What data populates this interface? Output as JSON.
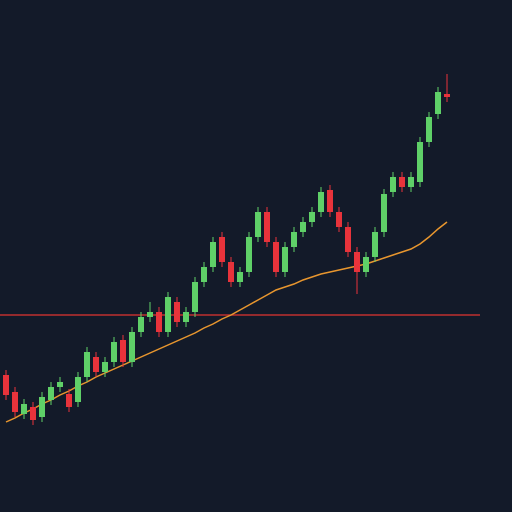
{
  "chart_data": {
    "type": "candlestick",
    "background": "#131a29",
    "up_color": "#5fd068",
    "down_color": "#e8333b",
    "ylim": [
      0,
      512
    ],
    "categories": [
      null,
      null,
      null,
      null,
      null,
      null,
      null,
      null,
      null,
      null,
      null,
      null,
      null,
      null,
      null,
      null,
      null,
      null,
      null,
      null,
      null,
      null,
      null,
      null,
      null,
      null,
      null,
      null,
      null,
      null,
      null,
      null,
      null,
      null,
      null,
      null,
      null,
      null,
      null,
      null,
      null,
      null,
      null,
      null,
      null,
      null,
      null,
      null,
      null,
      null
    ],
    "open": [
      137,
      120,
      98,
      105,
      95,
      112,
      125,
      118,
      110,
      135,
      155,
      140,
      150,
      172,
      150,
      180,
      195,
      200,
      180,
      210,
      190,
      200,
      230,
      245,
      275,
      250,
      230,
      240,
      275,
      300,
      270,
      240,
      265,
      280,
      290,
      300,
      322,
      300,
      285,
      260,
      240,
      255,
      280,
      320,
      335,
      325,
      330,
      370,
      398,
      418
    ],
    "high": [
      142,
      125,
      113,
      110,
      120,
      130,
      135,
      123,
      140,
      165,
      160,
      155,
      175,
      177,
      185,
      200,
      210,
      205,
      220,
      215,
      205,
      235,
      250,
      275,
      280,
      255,
      245,
      280,
      305,
      305,
      275,
      270,
      285,
      295,
      305,
      325,
      327,
      305,
      290,
      265,
      260,
      285,
      323,
      340,
      340,
      340,
      375,
      400,
      425,
      438
    ],
    "low": [
      112,
      95,
      93,
      87,
      90,
      107,
      120,
      100,
      105,
      130,
      135,
      135,
      145,
      145,
      145,
      175,
      190,
      175,
      175,
      185,
      185,
      195,
      225,
      240,
      245,
      225,
      225,
      235,
      270,
      265,
      235,
      235,
      260,
      275,
      285,
      295,
      295,
      280,
      255,
      218,
      235,
      250,
      275,
      315,
      320,
      320,
      325,
      365,
      393,
      410
    ],
    "close": [
      117,
      100,
      108,
      92,
      115,
      125,
      130,
      105,
      135,
      160,
      140,
      150,
      170,
      150,
      180,
      195,
      200,
      180,
      215,
      190,
      200,
      230,
      245,
      270,
      250,
      230,
      240,
      275,
      300,
      270,
      240,
      265,
      280,
      290,
      300,
      320,
      300,
      285,
      260,
      240,
      255,
      280,
      318,
      335,
      325,
      335,
      370,
      395,
      420,
      415
    ],
    "series": [
      {
        "color": "#e8962e",
        "values": [
          90,
          94,
          99,
          103,
          108,
          112,
          117,
          121,
          126,
          130,
          135,
          139,
          143,
          147,
          151,
          155,
          159,
          163,
          167,
          171,
          175,
          179,
          184,
          188,
          193,
          197,
          202,
          207,
          212,
          217,
          222,
          225,
          228,
          232,
          235,
          238,
          240,
          242,
          244,
          246,
          248,
          251,
          254,
          257,
          260,
          263,
          268,
          275,
          283,
          290
        ]
      }
    ],
    "hline": {
      "value": 197,
      "color": "#c0302f"
    }
  }
}
